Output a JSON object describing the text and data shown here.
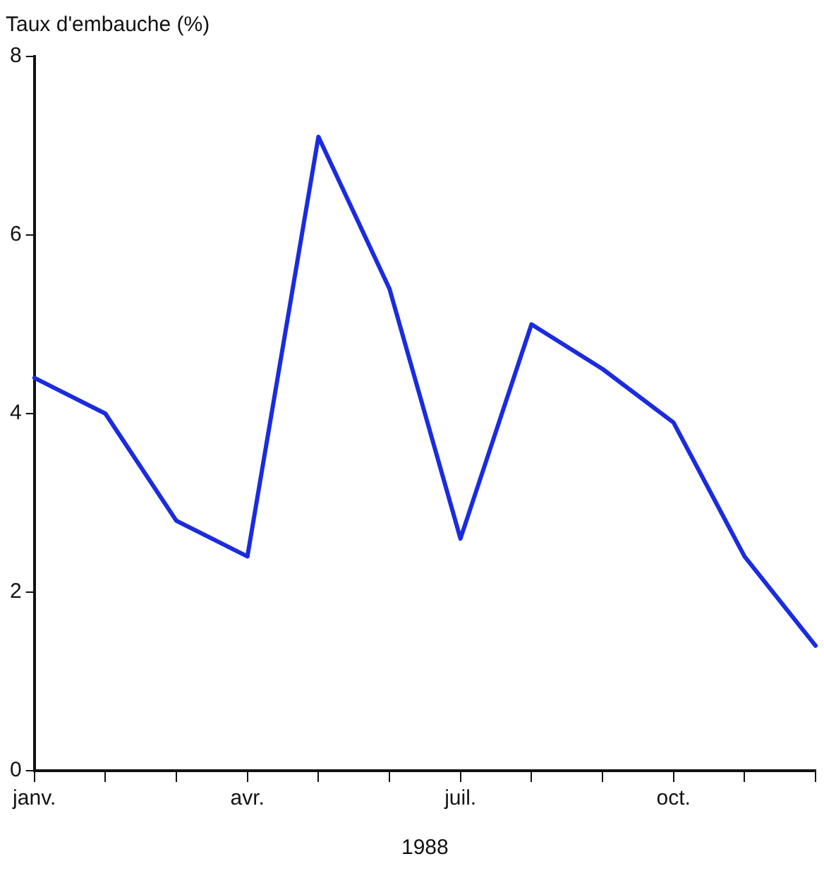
{
  "chart_data": {
    "type": "line",
    "ylabel": "Taux d'embauche (%)",
    "xlabel": "1988",
    "categories": [
      "janv.",
      null,
      null,
      "avr.",
      null,
      null,
      "juil.",
      null,
      null,
      "oct.",
      null,
      null
    ],
    "series": [
      {
        "color": "#1a2be0",
        "values": [
          4.4,
          4.0,
          2.8,
          2.4,
          7.1,
          5.4,
          2.6,
          5.0,
          4.5,
          3.9,
          2.4,
          1.4
        ]
      }
    ],
    "ylim": [
      0,
      8
    ],
    "yticks": [
      0,
      2,
      4,
      6,
      8
    ],
    "grid": false,
    "legend": false,
    "marker": "none",
    "line_style": "solid"
  }
}
